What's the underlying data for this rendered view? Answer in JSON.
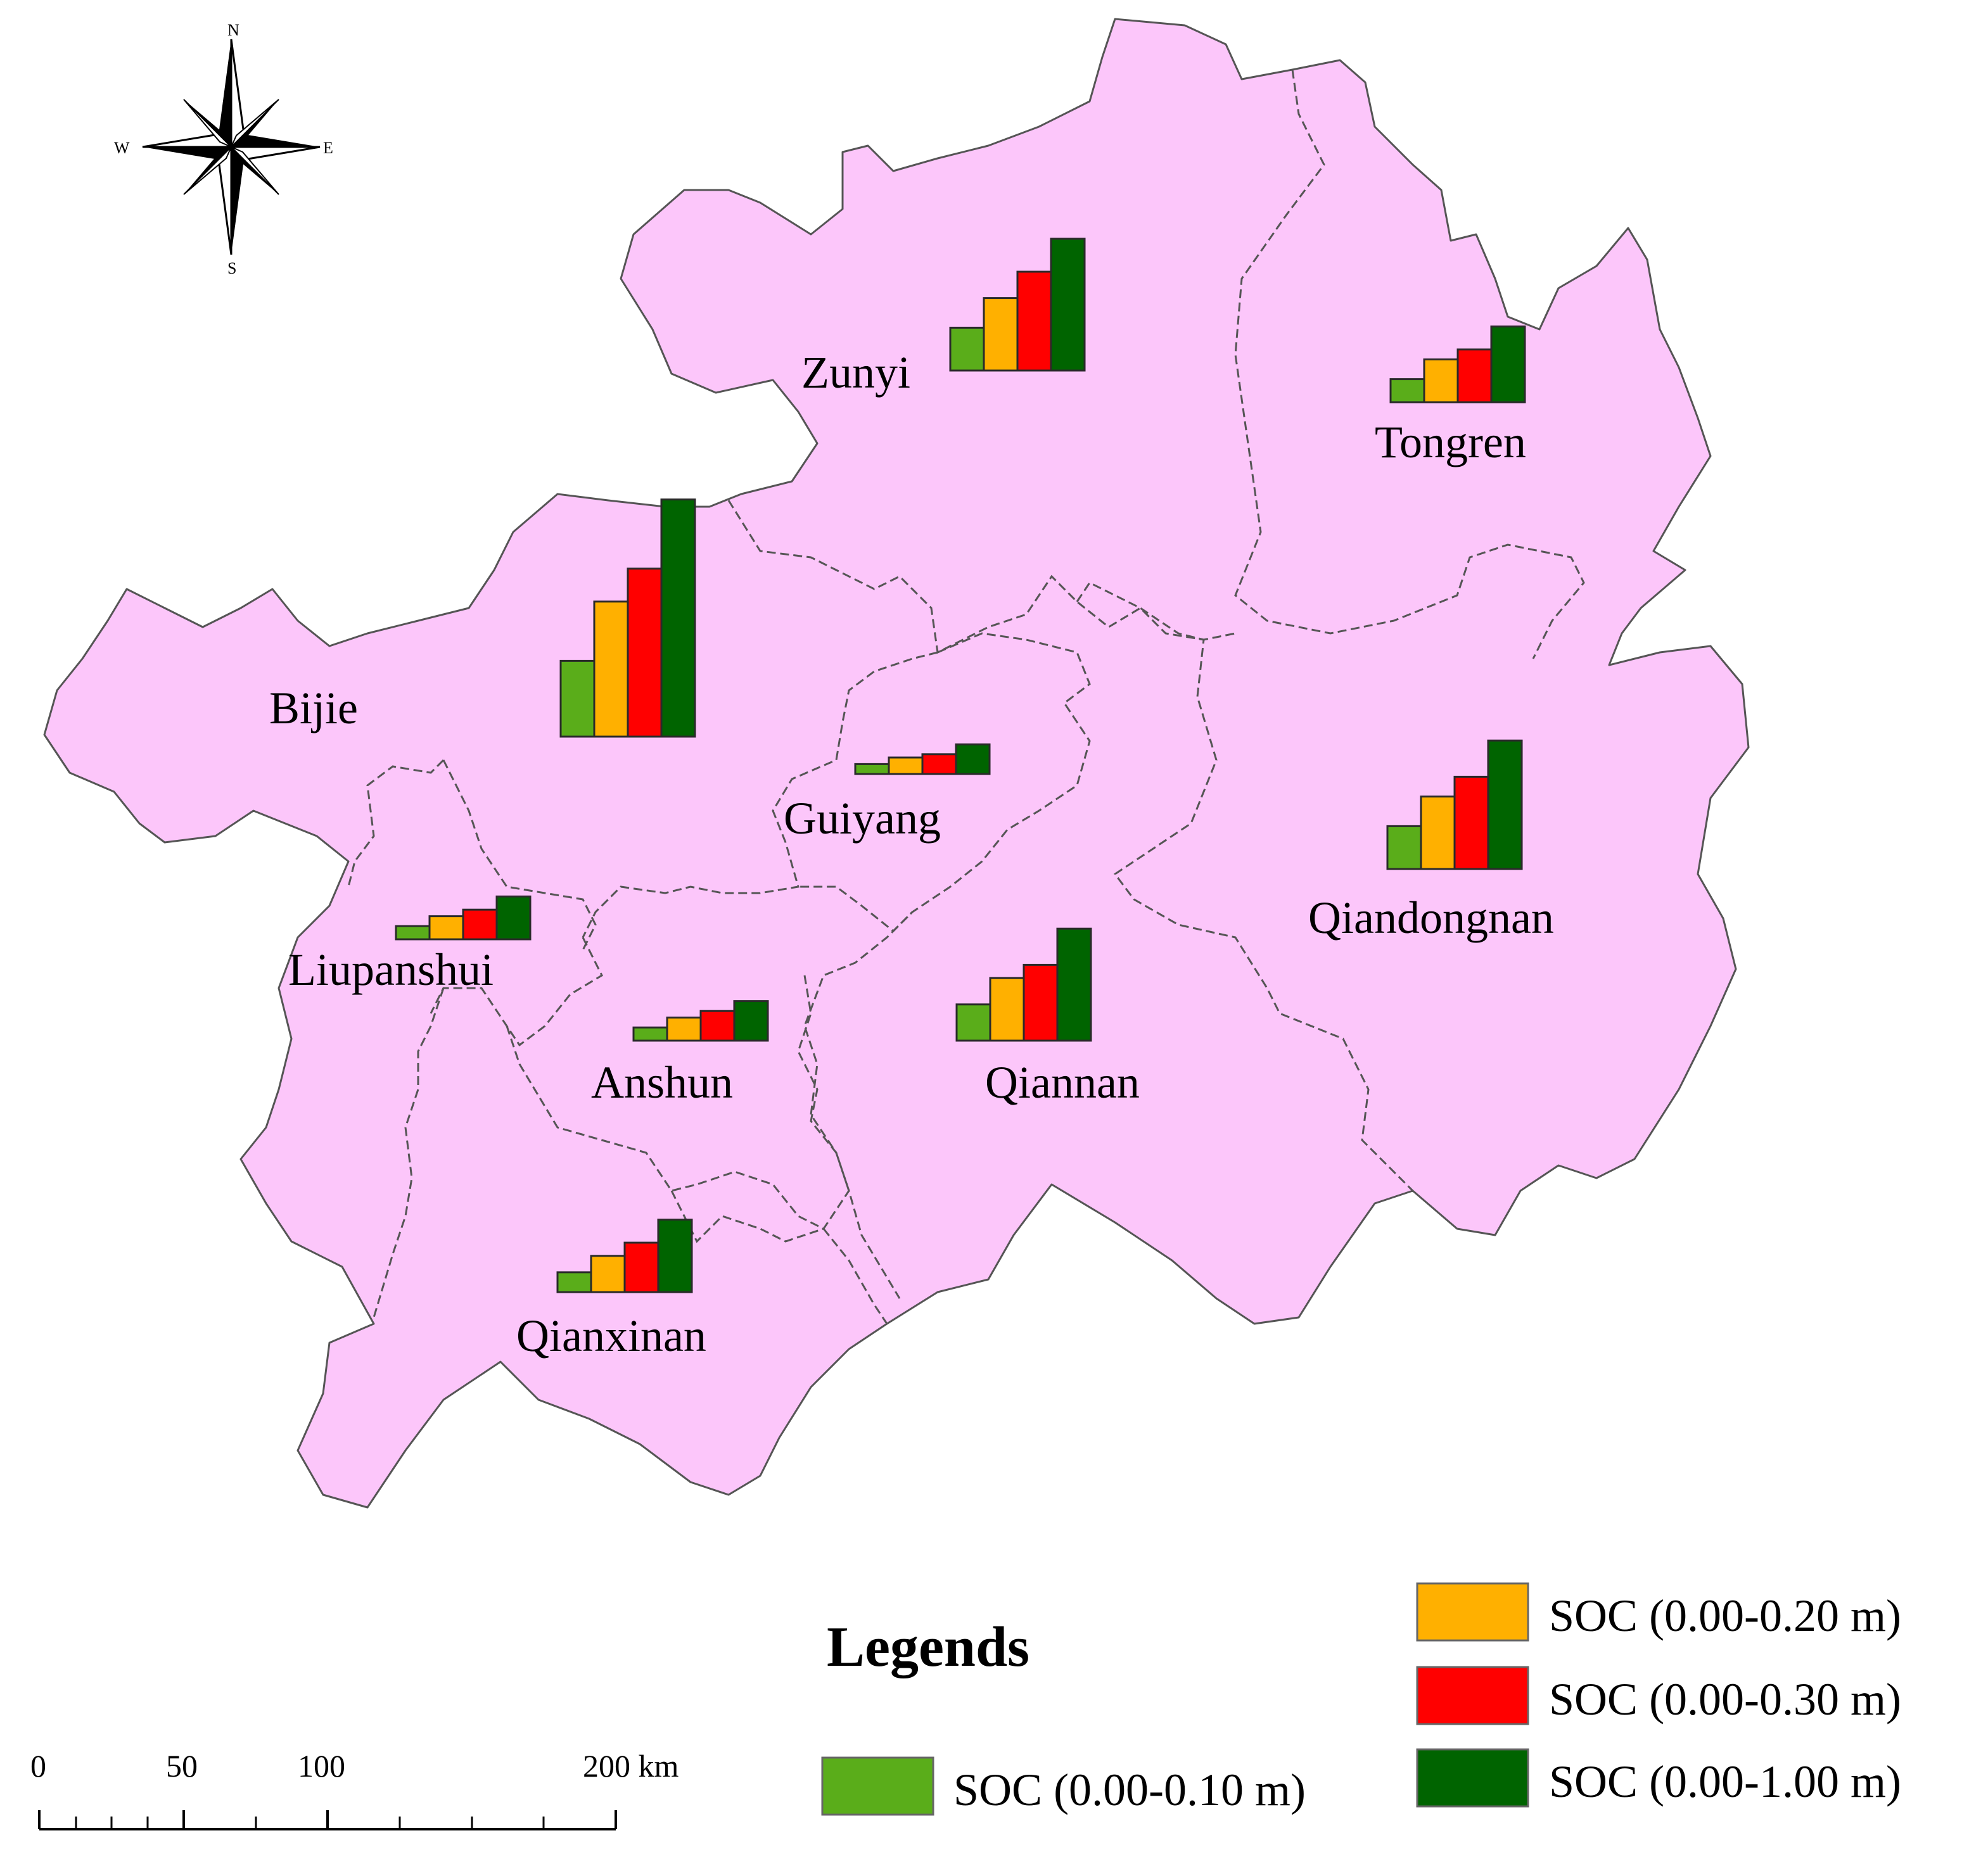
{
  "legend": {
    "title": "Legends",
    "items": [
      {
        "label": "SOC (0.00-0.10 m)",
        "color": "#5aad1a"
      },
      {
        "label": "SOC (0.00-0.20 m)",
        "color": "#ffb000"
      },
      {
        "label": "SOC (0.00-0.30 m)",
        "color": "#ff0000"
      },
      {
        "label": "SOC (0.00-1.00 m)",
        "color": "#006400"
      }
    ]
  },
  "compass": {
    "n": "N",
    "s": "S",
    "e": "E",
    "w": "W"
  },
  "scale_bar": {
    "ticks": [
      "0",
      "50",
      "100",
      "200 km"
    ]
  },
  "region_fill": "#fcc6fa",
  "chart_data": {
    "type": "bar",
    "categories": [
      "SOC (0.00-0.10 m)",
      "SOC (0.00-0.20 m)",
      "SOC (0.00-0.30 m)",
      "SOC (0.00-1.00 m)"
    ],
    "regions": [
      {
        "name": "Zunyi",
        "values": [
          13,
          22,
          30,
          40
        ]
      },
      {
        "name": "Tongren",
        "values": [
          7,
          13,
          16,
          23
        ]
      },
      {
        "name": "Bijie",
        "values": [
          23,
          41,
          51,
          72
        ]
      },
      {
        "name": "Guiyang",
        "values": [
          3,
          5,
          6,
          9
        ]
      },
      {
        "name": "Liupanshui",
        "values": [
          4,
          7,
          9,
          13
        ]
      },
      {
        "name": "Anshun",
        "values": [
          4,
          7,
          9,
          12
        ]
      },
      {
        "name": "Qiannan",
        "values": [
          11,
          19,
          23,
          34
        ]
      },
      {
        "name": "Qiandongnan",
        "values": [
          13,
          22,
          28,
          39
        ]
      },
      {
        "name": "Qianxinan",
        "values": [
          6,
          11,
          15,
          22
        ]
      }
    ]
  }
}
